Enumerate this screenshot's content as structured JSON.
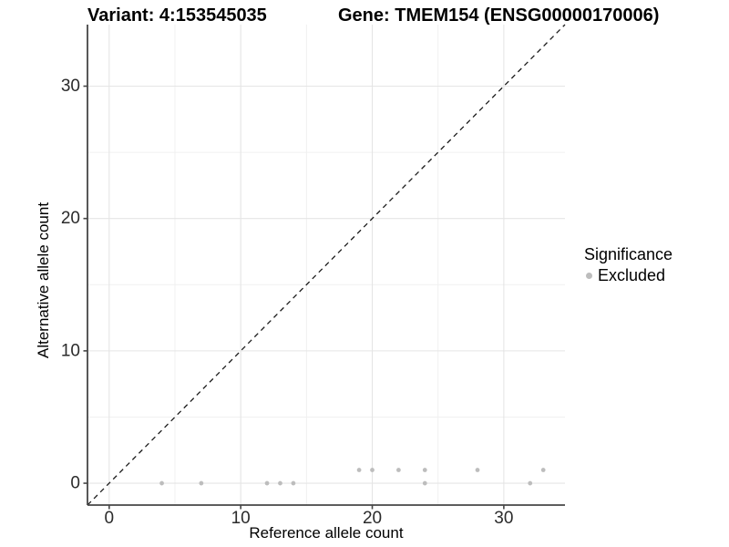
{
  "titles": {
    "left": "Variant: 4:153545035",
    "right": "Gene: TMEM154 (ENSG00000170006)"
  },
  "axes": {
    "x_label": "Reference allele count",
    "y_label": "Alternative allele count"
  },
  "legend": {
    "title": "Significance",
    "entries": [
      {
        "label": "Excluded",
        "color": "#bdbdbd"
      }
    ]
  },
  "chart_data": {
    "type": "scatter",
    "title": "Variant: 4:153545035   Gene: TMEM154 (ENSG00000170006)",
    "xlabel": "Reference allele count",
    "ylabel": "Alternative allele count",
    "xlim": [
      -1.65,
      34.65
    ],
    "ylim": [
      -1.65,
      34.65
    ],
    "x_major_ticks": [
      0,
      10,
      20,
      30
    ],
    "y_major_ticks": [
      0,
      10,
      20,
      30
    ],
    "x_minor_gridlines": [
      5,
      15,
      25
    ],
    "y_minor_gridlines": [
      5,
      15,
      25
    ],
    "grid": true,
    "legend_position": "right",
    "identity_line": {
      "style": "dashed",
      "slope": 1,
      "intercept": 0,
      "color": "#1c1c1c"
    },
    "series": [
      {
        "name": "Excluded",
        "color": "#bdbdbd",
        "points": [
          [
            4,
            0
          ],
          [
            7,
            0
          ],
          [
            12,
            0
          ],
          [
            13,
            0
          ],
          [
            14,
            0
          ],
          [
            24,
            0
          ],
          [
            32,
            0
          ],
          [
            19,
            1
          ],
          [
            20,
            1
          ],
          [
            22,
            1
          ],
          [
            24,
            1
          ],
          [
            28,
            1
          ],
          [
            33,
            1
          ]
        ]
      }
    ],
    "style": {
      "grid_major_color": "#e5e5e5",
      "grid_minor_color": "#f0f0f0",
      "axis_line_color": "#464646",
      "tick_label_color": "#2b2b2b",
      "point_radius": 2.4
    }
  }
}
